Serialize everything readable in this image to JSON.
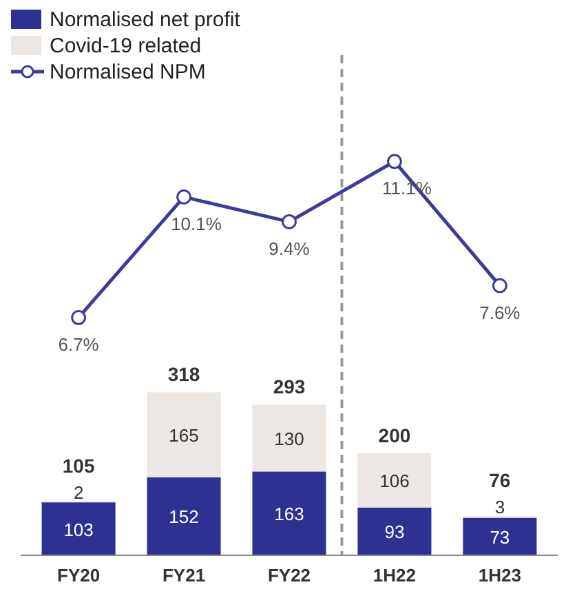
{
  "chart_data": [
    {
      "type": "bar",
      "stacked": true,
      "categories": [
        "FY20",
        "FY21",
        "FY22",
        "1H22",
        "1H23"
      ],
      "series": [
        {
          "name": "Normalised net profit",
          "color": "#2e3192",
          "values": [
            103,
            152,
            163,
            93,
            73
          ]
        },
        {
          "name": "Covid-19 related",
          "color": "#ece7e2",
          "values": [
            2,
            165,
            130,
            106,
            3
          ]
        }
      ],
      "data_labels": true,
      "totals": [
        "105",
        "318",
        "293",
        "200",
        "76"
      ],
      "legend": "top left"
    },
    {
      "type": "line",
      "series": [
        {
          "name": "Normalised NPM",
          "color": "#3d3b9a",
          "values": [
            6.7,
            10.1,
            9.4,
            11.1,
            7.6
          ],
          "value_labels": [
            "6.7%",
            "10.1%",
            "9.4%",
            "11.1%",
            "7.6%"
          ]
        }
      ],
      "marker": "circle",
      "legend": "top left"
    }
  ]
}
